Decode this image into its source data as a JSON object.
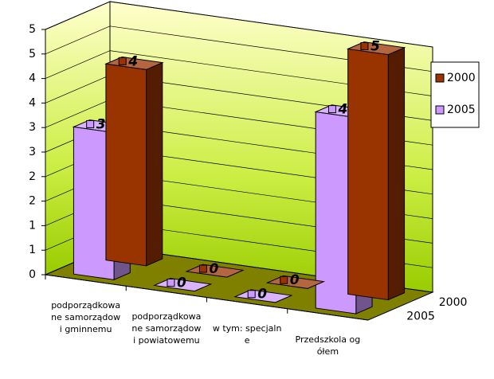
{
  "chart_data": {
    "type": "bar3d",
    "categories": [
      "podporządkowane samorządowi gminnemu",
      "podporządkowane samorządowi powiatowemu",
      "w tym: specjalne",
      "Przedszkola ogółem"
    ],
    "series": [
      {
        "name": "2000",
        "color": "#993300",
        "values": [
          4,
          0,
          0,
          5
        ]
      },
      {
        "name": "2005",
        "color": "#cc99ff",
        "values": [
          3,
          0,
          0,
          4
        ]
      }
    ],
    "ylim": [
      0,
      5
    ],
    "yticks": [
      0,
      {
        "value": 0.5,
        "label": "1"
      },
      1,
      {
        "value": 1.5,
        "label": "2"
      },
      2,
      {
        "value": 2.5,
        "label": "3"
      },
      3,
      {
        "value": 3.5,
        "label": "4"
      },
      4,
      {
        "value": 4.5,
        "label": "5"
      },
      5
    ],
    "grid": true
  }
}
